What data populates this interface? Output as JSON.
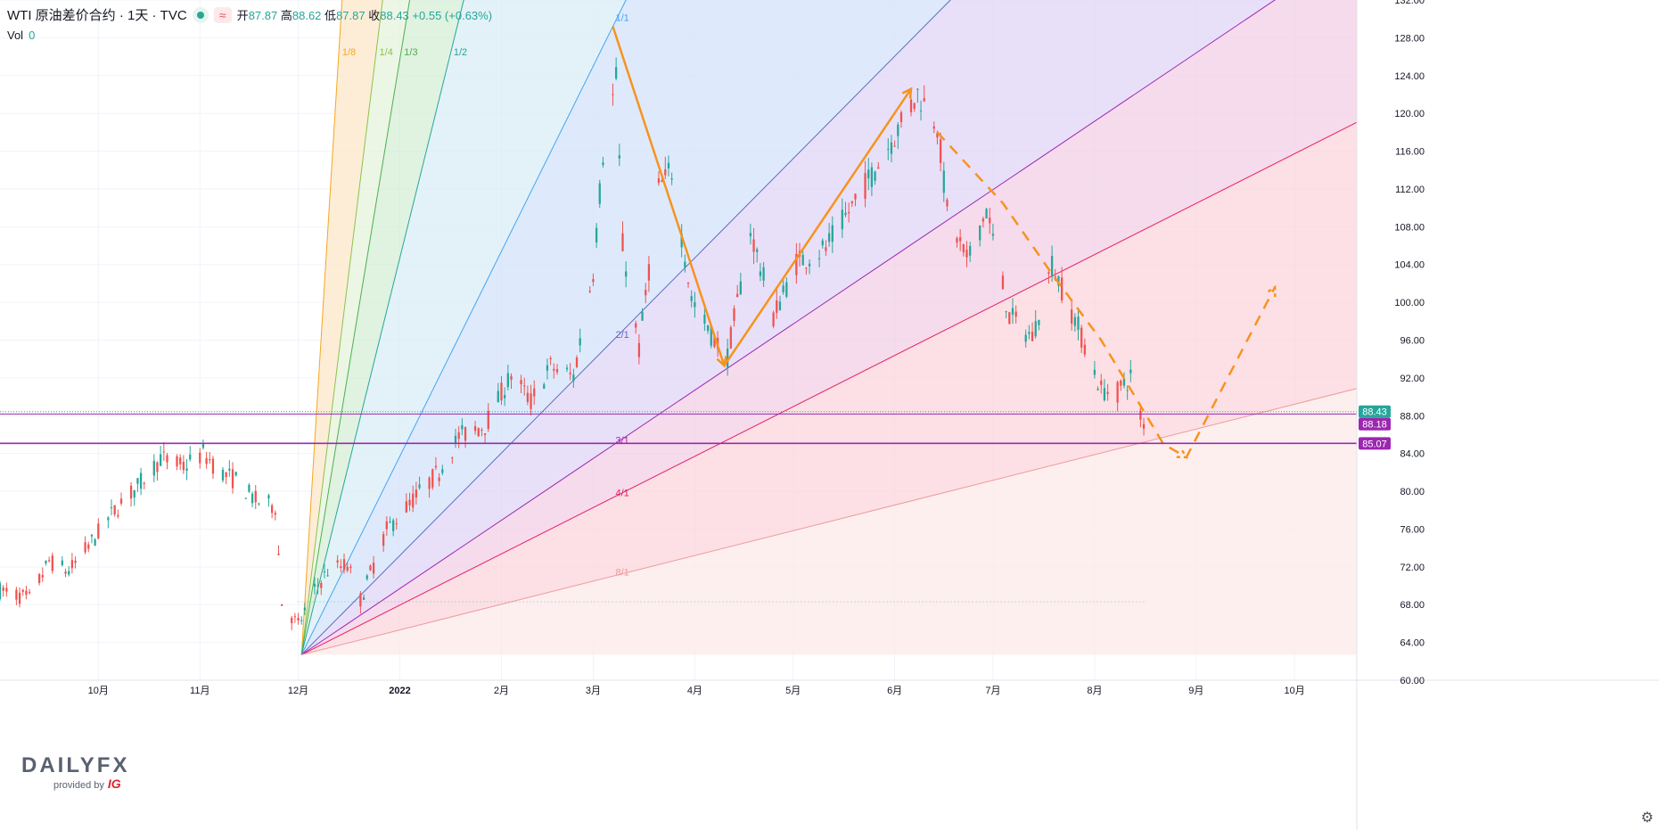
{
  "legend": {
    "title": "WTI 原油差价合约 · 1天 · TVC",
    "open_label": "开",
    "open": "87.87",
    "high_label": "高",
    "high": "88.62",
    "low_label": "低",
    "low": "87.87",
    "close_label": "收",
    "close": "88.43",
    "change": "+0.55 (+0.63%)",
    "vol_label": "Vol",
    "vol_value": "0"
  },
  "logo": {
    "brand_daily": "DAILY",
    "brand_fx": "FX",
    "provided_by": "provided by",
    "ig": "IG"
  },
  "colors": {
    "up": "#26a69a",
    "down": "#ef5350",
    "accent_purple": "#9c27b0",
    "trend_orange": "#f7931e"
  },
  "chart_data": {
    "type": "candlestick",
    "title": "WTI 原油差价合约",
    "interval": "1天",
    "source": "TVC",
    "ylim": [
      60,
      132
    ],
    "y_ticks": [
      "60.00",
      "64.00",
      "68.00",
      "72.00",
      "76.00",
      "80.00",
      "84.00",
      "88.00",
      "92.00",
      "96.00",
      "100.00",
      "104.00",
      "108.00",
      "112.00",
      "116.00",
      "120.00",
      "124.00",
      "128.00",
      "132.00"
    ],
    "x_ticks": [
      {
        "label": "10月",
        "date": "2021-10-01"
      },
      {
        "label": "11月",
        "date": "2021-11-01"
      },
      {
        "label": "12月",
        "date": "2021-12-01"
      },
      {
        "label": "2022",
        "date": "2022-01-01"
      },
      {
        "label": "2月",
        "date": "2022-02-01"
      },
      {
        "label": "3月",
        "date": "2022-03-01"
      },
      {
        "label": "4月",
        "date": "2022-04-01"
      },
      {
        "label": "5月",
        "date": "2022-05-01"
      },
      {
        "label": "6月",
        "date": "2022-06-01"
      },
      {
        "label": "7月",
        "date": "2022-07-01"
      },
      {
        "label": "8月",
        "date": "2022-08-01"
      },
      {
        "label": "9月",
        "date": "2022-09-01"
      },
      {
        "label": "10月",
        "date": "2022-10-01"
      }
    ],
    "x_start_date": "2021-09-01",
    "x_end_date": "2022-10-20",
    "price_path": [
      [
        "2021-09-01",
        69.5
      ],
      [
        "2021-09-10",
        68.6
      ],
      [
        "2021-09-16",
        72.6
      ],
      [
        "2021-09-22",
        71.5
      ],
      [
        "2021-09-30",
        75.1
      ],
      [
        "2021-10-06",
        78.0
      ],
      [
        "2021-10-13",
        80.5
      ],
      [
        "2021-10-20",
        83.5
      ],
      [
        "2021-10-27",
        82.6
      ],
      [
        "2021-11-02",
        84.0
      ],
      [
        "2021-11-08",
        81.8
      ],
      [
        "2021-11-12",
        81.2
      ],
      [
        "2021-11-18",
        79.0
      ],
      [
        "2021-11-24",
        78.4
      ],
      [
        "2021-11-26",
        68.2
      ],
      [
        "2021-12-01",
        65.8
      ],
      [
        "2021-12-06",
        69.5
      ],
      [
        "2021-12-10",
        71.6
      ],
      [
        "2021-12-16",
        72.2
      ],
      [
        "2021-12-20",
        68.5
      ],
      [
        "2021-12-28",
        75.9
      ],
      [
        "2022-01-06",
        79.5
      ],
      [
        "2022-01-13",
        82.1
      ],
      [
        "2022-01-19",
        85.8
      ],
      [
        "2022-01-27",
        87.0
      ],
      [
        "2022-02-04",
        92.3
      ],
      [
        "2022-02-10",
        89.5
      ],
      [
        "2022-02-16",
        93.2
      ],
      [
        "2022-02-23",
        92.1
      ],
      [
        "2022-03-01",
        103.4
      ],
      [
        "2022-03-04",
        115.7
      ],
      [
        "2022-03-08",
        123.7
      ],
      [
        "2022-03-10",
        106.0
      ],
      [
        "2022-03-15",
        95.0
      ],
      [
        "2022-03-21",
        112.1
      ],
      [
        "2022-03-25",
        113.9
      ],
      [
        "2022-03-31",
        100.3
      ],
      [
        "2022-04-07",
        96.0
      ],
      [
        "2022-04-11",
        94.3
      ],
      [
        "2022-04-18",
        107.6
      ],
      [
        "2022-04-25",
        98.5
      ],
      [
        "2022-05-02",
        104.2
      ],
      [
        "2022-05-11",
        105.7
      ],
      [
        "2022-05-18",
        109.6
      ],
      [
        "2022-05-26",
        114.1
      ],
      [
        "2022-06-03",
        118.9
      ],
      [
        "2022-06-08",
        122.1
      ],
      [
        "2022-06-14",
        118.9
      ],
      [
        "2022-06-17",
        109.6
      ],
      [
        "2022-06-23",
        104.3
      ],
      [
        "2022-06-29",
        109.8
      ],
      [
        "2022-07-06",
        98.5
      ],
      [
        "2022-07-13",
        96.3
      ],
      [
        "2022-07-19",
        104.0
      ],
      [
        "2022-07-27",
        97.3
      ],
      [
        "2022-08-03",
        90.7
      ],
      [
        "2022-08-08",
        90.5
      ],
      [
        "2022-08-12",
        92.1
      ],
      [
        "2022-08-16",
        86.6
      ],
      [
        "2022-08-17",
        88.4
      ]
    ],
    "horizontal_levels": [
      {
        "price": 88.43,
        "label": "88.43",
        "color": "#26a69a"
      },
      {
        "price": 88.18,
        "label": "88.18",
        "color": "#9c27b0"
      },
      {
        "price": 85.07,
        "label": "85.07",
        "color": "#9c27b0"
      }
    ],
    "gann_fan": {
      "origin": {
        "date": "2021-12-02",
        "price": 62.7
      },
      "unit_anchor": {
        "date": "2022-03-07",
        "price": 129.2
      },
      "rays": [
        {
          "label": "1/8",
          "ratio": 0.125,
          "color": "#f5a623"
        },
        {
          "label": "1/4",
          "ratio": 0.25,
          "color": "#8bc34a"
        },
        {
          "label": "1/3",
          "ratio": 0.3333,
          "color": "#4caf50"
        },
        {
          "label": "1/2",
          "ratio": 0.5,
          "color": "#26a69a"
        },
        {
          "label": "1/1",
          "ratio": 1,
          "color": "#42a5f5"
        },
        {
          "label": "2/1",
          "ratio": 2,
          "color": "#5c6bc0"
        },
        {
          "label": "3/1",
          "ratio": 3,
          "color": "#9c27b0"
        },
        {
          "label": "4/1",
          "ratio": 4,
          "color": "#e91e63"
        },
        {
          "label": "8/1",
          "ratio": 8,
          "color": "#ef9a9a"
        }
      ]
    },
    "solid_trend_lines": [
      [
        [
          "2022-03-07",
          129.2
        ],
        [
          "2022-04-10",
          93.3
        ],
        [
          "2022-06-06",
          122.6
        ]
      ]
    ],
    "dashed_trend_lines": [
      [
        [
          "2022-06-14",
          118.0
        ],
        [
          "2022-07-04",
          110.5
        ],
        [
          "2022-07-19",
          103.0
        ],
        [
          "2022-08-03",
          96.0
        ],
        [
          "2022-08-22",
          85.0
        ],
        [
          "2022-08-29",
          83.6
        ],
        [
          "2022-09-25",
          101.6
        ]
      ]
    ]
  }
}
